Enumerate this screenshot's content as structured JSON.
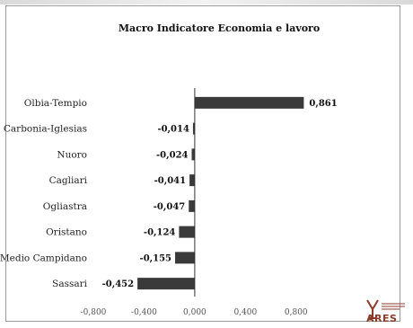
{
  "logo": {
    "name": "ares-logo-icon",
    "text": "ARES",
    "color": "#8a3b2a"
  },
  "colors": {
    "bar": "#3a3a3a",
    "axis": "#333333",
    "frame": "#9a9a9a"
  },
  "chart_data": {
    "type": "bar",
    "orientation": "horizontal",
    "title": "Macro Indicatore Economia e lavoro",
    "categories": [
      "Olbia-Tempio",
      "Carbonia-Iglesias",
      "Nuoro",
      "Cagliari",
      "Ogliastra",
      "Oristano",
      "Medio Campidano",
      "Sassari"
    ],
    "values": [
      0.861,
      -0.014,
      -0.024,
      -0.041,
      -0.047,
      -0.124,
      -0.155,
      -0.452
    ],
    "value_labels": [
      "0,861",
      "-0,014",
      "-0,024",
      "-0,041",
      "-0,047",
      "-0,124",
      "-0,155",
      "-0,452"
    ],
    "xlim": [
      -0.8,
      1.0
    ],
    "xticks": [
      -0.8,
      -0.4,
      0.0,
      0.4,
      0.8
    ],
    "xtick_labels": [
      "-0,800",
      "-0,400",
      "0,000",
      "0,400",
      "0,800"
    ],
    "grid": false,
    "legend": "none"
  }
}
